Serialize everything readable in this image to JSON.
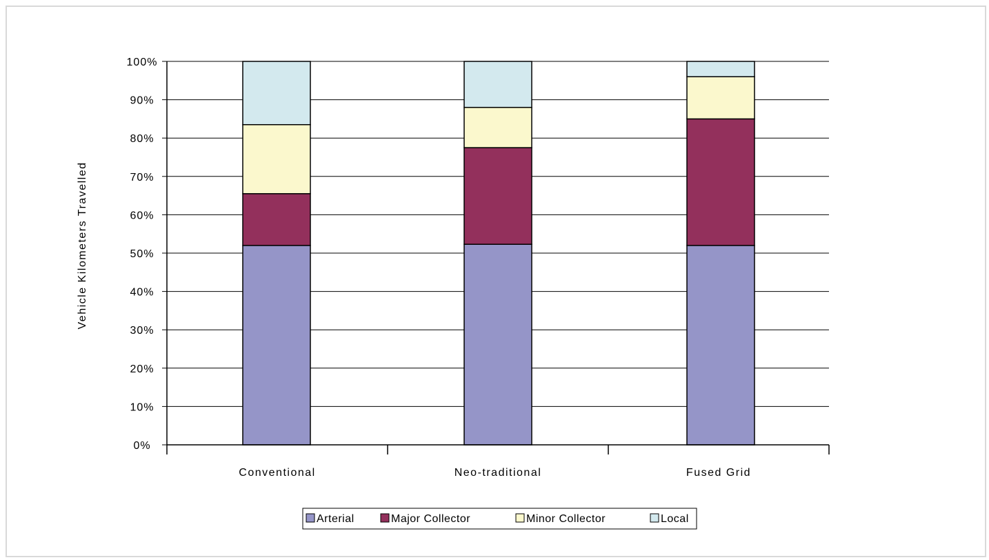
{
  "chart_data": {
    "type": "bar",
    "stacked": true,
    "percent_stacked": true,
    "categories": [
      "Conventional",
      "Neo-traditional",
      "Fused Grid"
    ],
    "series": [
      {
        "name": "Arterial",
        "color": "#9595c8",
        "values": [
          52,
          52.3,
          52
        ]
      },
      {
        "name": "Major Collector",
        "color": "#93305c",
        "values": [
          13.5,
          25.2,
          33
        ]
      },
      {
        "name": "Minor Collector",
        "color": "#fbf8cd",
        "values": [
          18,
          10.5,
          11
        ]
      },
      {
        "name": "Local",
        "color": "#d3e9ee",
        "values": [
          16.5,
          12,
          4
        ]
      }
    ],
    "ylabel": "Vehicle Kilometers Travelled",
    "yticks": [
      "0%",
      "10%",
      "20%",
      "30%",
      "40%",
      "50%",
      "60%",
      "70%",
      "80%",
      "90%",
      "100%"
    ],
    "ylim": [
      0,
      100
    ],
    "grid": true,
    "legend_position": "bottom"
  }
}
